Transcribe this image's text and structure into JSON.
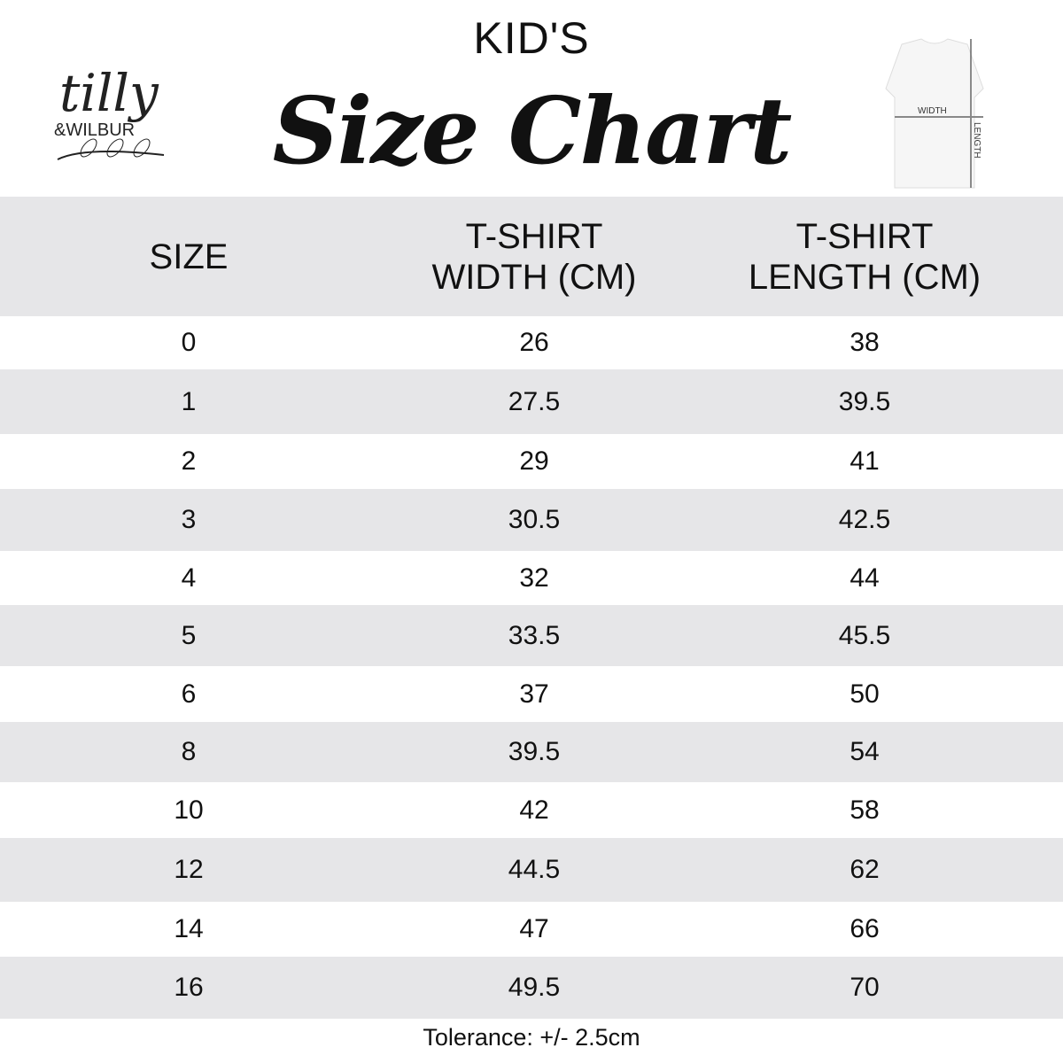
{
  "header": {
    "brand": "tilly & WILBUR",
    "kicker": "KID'S",
    "title": "Size Chart",
    "diagram": {
      "width_label": "WIDTH",
      "length_label": "LENGTH"
    }
  },
  "table": {
    "columns": [
      "SIZE",
      "T-SHIRT WIDTH (CM)",
      "T-SHIRT LENGTH (CM)"
    ],
    "column_lines": [
      [
        "SIZE"
      ],
      [
        "T-SHIRT",
        "WIDTH (CM)"
      ],
      [
        "T-SHIRT",
        "LENGTH (CM)"
      ]
    ],
    "rows": [
      [
        "0",
        "26",
        "38"
      ],
      [
        "1",
        "27.5",
        "39.5"
      ],
      [
        "2",
        "29",
        "41"
      ],
      [
        "3",
        "30.5",
        "42.5"
      ],
      [
        "4",
        "32",
        "44"
      ],
      [
        "5",
        "33.5",
        "45.5"
      ],
      [
        "6",
        "37",
        "50"
      ],
      [
        "8",
        "39.5",
        "54"
      ],
      [
        "10",
        "42",
        "58"
      ],
      [
        "12",
        "44.5",
        "62"
      ],
      [
        "14",
        "47",
        "66"
      ],
      [
        "16",
        "49.5",
        "70"
      ]
    ]
  },
  "footer": {
    "tolerance": "Tolerance: +/- 2.5cm"
  },
  "colors": {
    "band": "#e6e6e8",
    "text": "#111111"
  }
}
